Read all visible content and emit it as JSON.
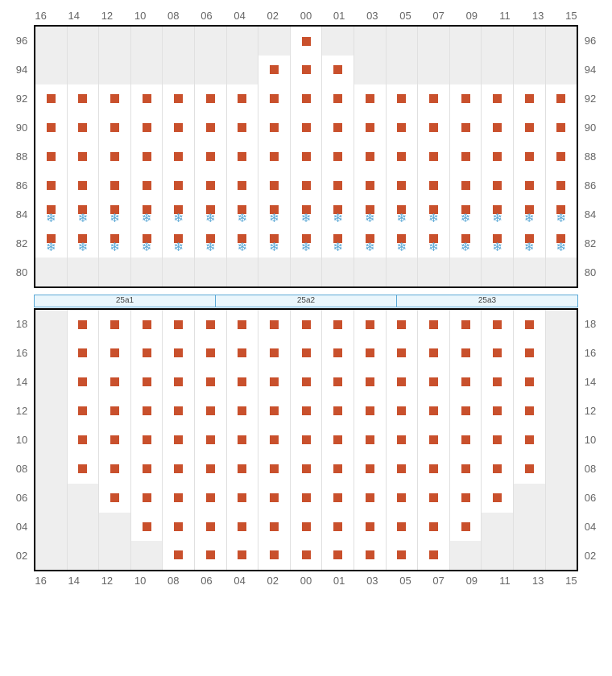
{
  "colors": {
    "seat": "#c9502c",
    "cold_icon": "#5aa8d6",
    "na_bg": "#eeeeee",
    "cell_bg": "#ffffff",
    "grid_line": "#e0e0e0",
    "frame": "#000000",
    "label": "#666666",
    "stage_bg": "#eaf6fc",
    "stage_border": "#5aa8d6"
  },
  "columns": [
    "16",
    "14",
    "12",
    "10",
    "08",
    "06",
    "04",
    "02",
    "00",
    "01",
    "03",
    "05",
    "07",
    "09",
    "11",
    "13",
    "15"
  ],
  "stage_segments": [
    "25a1",
    "25a2",
    "25a3"
  ],
  "top_block": {
    "rows": [
      {
        "label": "96",
        "cells": [
          "na",
          "na",
          "na",
          "na",
          "na",
          "na",
          "na",
          "na",
          "seat",
          "na",
          "na",
          "na",
          "na",
          "na",
          "na",
          "na",
          "na"
        ]
      },
      {
        "label": "94",
        "cells": [
          "na",
          "na",
          "na",
          "na",
          "na",
          "na",
          "na",
          "seat",
          "seat",
          "seat",
          "na",
          "na",
          "na",
          "na",
          "na",
          "na",
          "na"
        ]
      },
      {
        "label": "92",
        "cells": [
          "seat",
          "seat",
          "seat",
          "seat",
          "seat",
          "seat",
          "seat",
          "seat",
          "seat",
          "seat",
          "seat",
          "seat",
          "seat",
          "seat",
          "seat",
          "seat",
          "seat"
        ]
      },
      {
        "label": "90",
        "cells": [
          "seat",
          "seat",
          "seat",
          "seat",
          "seat",
          "seat",
          "seat",
          "seat",
          "seat",
          "seat",
          "seat",
          "seat",
          "seat",
          "seat",
          "seat",
          "seat",
          "seat"
        ]
      },
      {
        "label": "88",
        "cells": [
          "seat",
          "seat",
          "seat",
          "seat",
          "seat",
          "seat",
          "seat",
          "seat",
          "seat",
          "seat",
          "seat",
          "seat",
          "seat",
          "seat",
          "seat",
          "seat",
          "seat"
        ]
      },
      {
        "label": "86",
        "cells": [
          "seat",
          "seat",
          "seat",
          "seat",
          "seat",
          "seat",
          "seat",
          "seat",
          "seat",
          "seat",
          "seat",
          "seat",
          "seat",
          "seat",
          "seat",
          "seat",
          "seat"
        ]
      },
      {
        "label": "84",
        "cells": [
          "cold",
          "cold",
          "cold",
          "cold",
          "cold",
          "cold",
          "cold",
          "cold",
          "cold",
          "cold",
          "cold",
          "cold",
          "cold",
          "cold",
          "cold",
          "cold",
          "cold"
        ]
      },
      {
        "label": "82",
        "cells": [
          "cold",
          "cold",
          "cold",
          "cold",
          "cold",
          "cold",
          "cold",
          "cold",
          "cold",
          "cold",
          "cold",
          "cold",
          "cold",
          "cold",
          "cold",
          "cold",
          "cold"
        ]
      },
      {
        "label": "80",
        "cells": [
          "na",
          "na",
          "na",
          "na",
          "na",
          "na",
          "na",
          "na",
          "na",
          "na",
          "na",
          "na",
          "na",
          "na",
          "na",
          "na",
          "na"
        ]
      }
    ]
  },
  "bottom_block": {
    "rows": [
      {
        "label": "18",
        "cells": [
          "na",
          "seat",
          "seat",
          "seat",
          "seat",
          "seat",
          "seat",
          "seat",
          "seat",
          "seat",
          "seat",
          "seat",
          "seat",
          "seat",
          "seat",
          "seat",
          "na"
        ]
      },
      {
        "label": "16",
        "cells": [
          "na",
          "seat",
          "seat",
          "seat",
          "seat",
          "seat",
          "seat",
          "seat",
          "seat",
          "seat",
          "seat",
          "seat",
          "seat",
          "seat",
          "seat",
          "seat",
          "na"
        ]
      },
      {
        "label": "14",
        "cells": [
          "na",
          "seat",
          "seat",
          "seat",
          "seat",
          "seat",
          "seat",
          "seat",
          "seat",
          "seat",
          "seat",
          "seat",
          "seat",
          "seat",
          "seat",
          "seat",
          "na"
        ]
      },
      {
        "label": "12",
        "cells": [
          "na",
          "seat",
          "seat",
          "seat",
          "seat",
          "seat",
          "seat",
          "seat",
          "seat",
          "seat",
          "seat",
          "seat",
          "seat",
          "seat",
          "seat",
          "seat",
          "na"
        ]
      },
      {
        "label": "10",
        "cells": [
          "na",
          "seat",
          "seat",
          "seat",
          "seat",
          "seat",
          "seat",
          "seat",
          "seat",
          "seat",
          "seat",
          "seat",
          "seat",
          "seat",
          "seat",
          "seat",
          "na"
        ]
      },
      {
        "label": "08",
        "cells": [
          "na",
          "seat",
          "seat",
          "seat",
          "seat",
          "seat",
          "seat",
          "seat",
          "seat",
          "seat",
          "seat",
          "seat",
          "seat",
          "seat",
          "seat",
          "seat",
          "na"
        ]
      },
      {
        "label": "06",
        "cells": [
          "na",
          "na",
          "seat",
          "seat",
          "seat",
          "seat",
          "seat",
          "seat",
          "seat",
          "seat",
          "seat",
          "seat",
          "seat",
          "seat",
          "seat",
          "na",
          "na"
        ]
      },
      {
        "label": "04",
        "cells": [
          "na",
          "na",
          "na",
          "seat",
          "seat",
          "seat",
          "seat",
          "seat",
          "seat",
          "seat",
          "seat",
          "seat",
          "seat",
          "seat",
          "na",
          "na",
          "na"
        ]
      },
      {
        "label": "02",
        "cells": [
          "na",
          "na",
          "na",
          "na",
          "seat",
          "seat",
          "seat",
          "seat",
          "seat",
          "seat",
          "seat",
          "seat",
          "seat",
          "na",
          "na",
          "na",
          "na"
        ]
      }
    ]
  }
}
